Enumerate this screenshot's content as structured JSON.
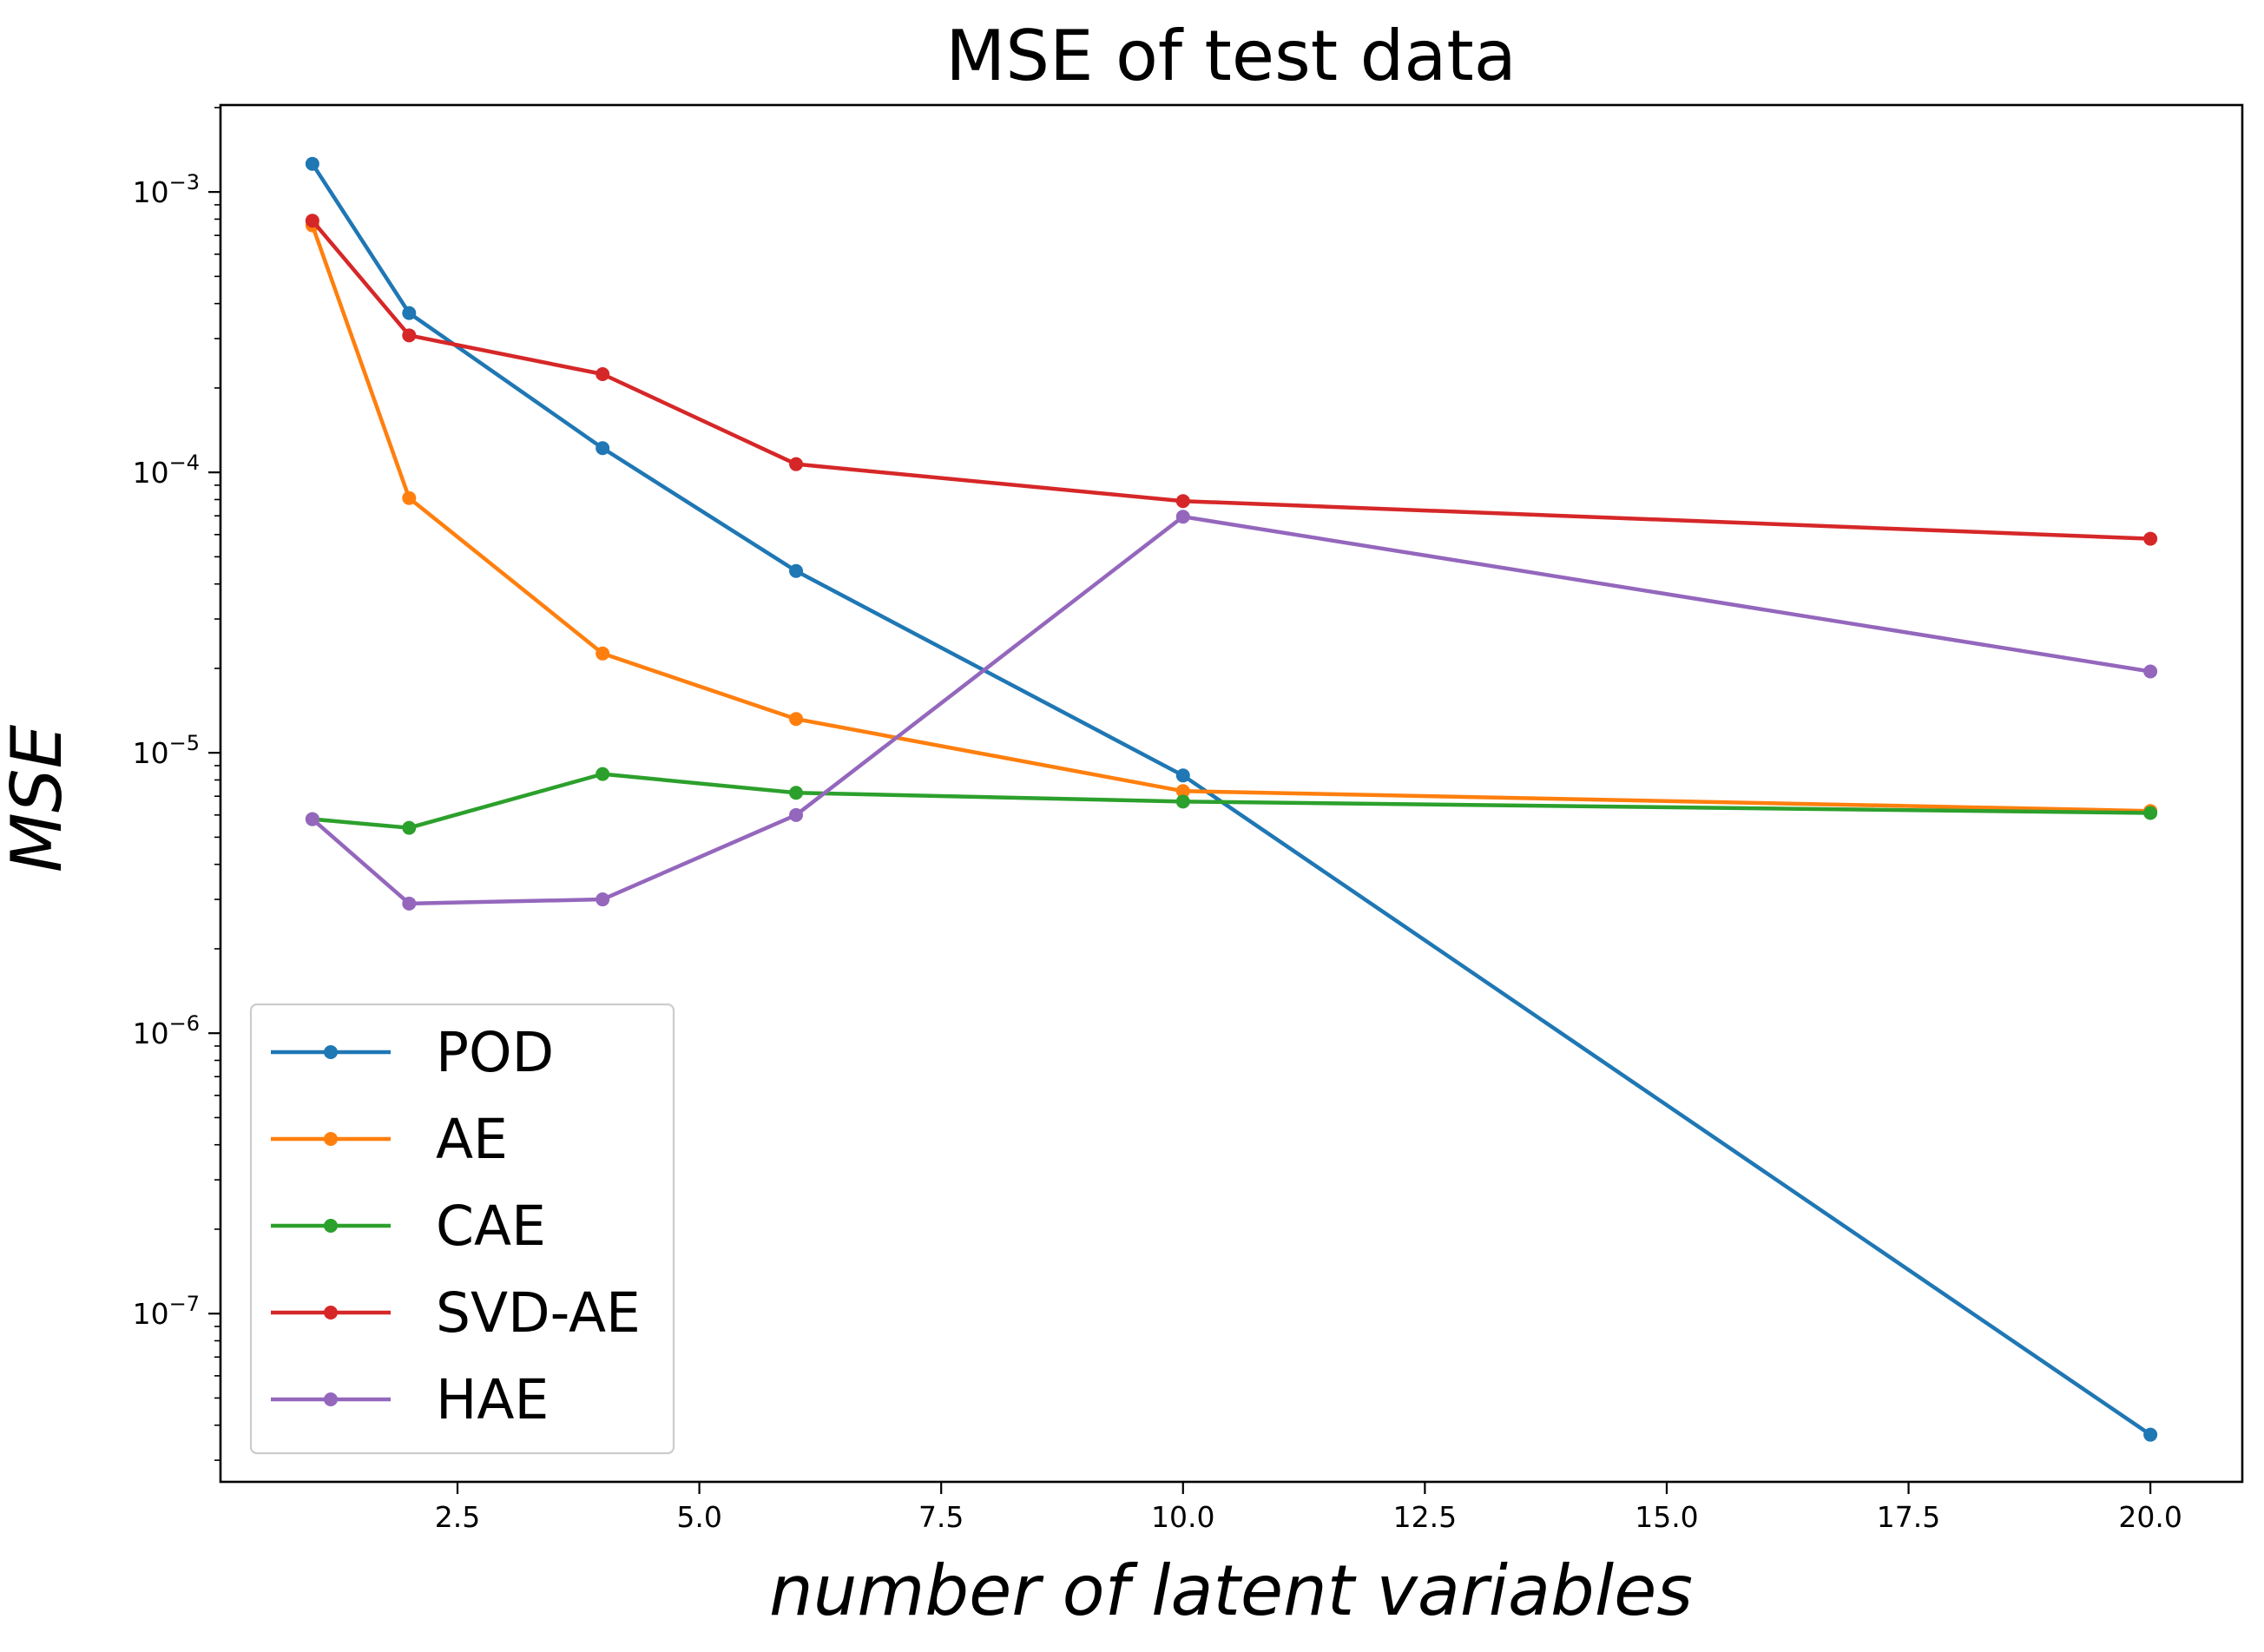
{
  "chart_data": {
    "type": "line",
    "title": "MSE of test data",
    "xlabel": "number of latent variables",
    "ylabel": "MSE",
    "yscale": "log",
    "xlim": [
      0.05,
      20.95
    ],
    "ylim_log10": [
      -7.6,
      -2.69
    ],
    "x_ticks": [
      2.5,
      5.0,
      7.5,
      10.0,
      12.5,
      15.0,
      17.5,
      20.0
    ],
    "x_tick_labels": [
      "2.5",
      "5.0",
      "7.5",
      "10.0",
      "12.5",
      "15.0",
      "17.5",
      "20.0"
    ],
    "y_ticks_log10": [
      -7,
      -6,
      -5,
      -4,
      -3
    ],
    "y_tick_labels": [
      {
        "base": "10",
        "exp": "−7"
      },
      {
        "base": "10",
        "exp": "−6"
      },
      {
        "base": "10",
        "exp": "−5"
      },
      {
        "base": "10",
        "exp": "−4"
      },
      {
        "base": "10",
        "exp": "−3"
      }
    ],
    "grid": false,
    "legend_position": "lower-left",
    "x": [
      1,
      2,
      4,
      6,
      10,
      20
    ],
    "series": [
      {
        "name": "POD",
        "color": "#1f77b4",
        "values": [
          0.00126,
          0.00037,
          0.000122,
          4.45e-05,
          8.3e-06,
          3.7e-08
        ]
      },
      {
        "name": "AE",
        "color": "#ff7f0e",
        "values": [
          0.00076,
          8.1e-05,
          2.26e-05,
          1.32e-05,
          7.3e-06,
          6.2e-06
        ]
      },
      {
        "name": "CAE",
        "color": "#2ca02c",
        "values": [
          5.8e-06,
          5.4e-06,
          8.4e-06,
          7.2e-06,
          6.7e-06,
          6.1e-06
        ]
      },
      {
        "name": "SVD-AE",
        "color": "#d62728",
        "values": [
          0.00079,
          0.000308,
          0.000224,
          0.000107,
          7.9e-05,
          5.8e-05
        ]
      },
      {
        "name": "HAE",
        "color": "#9467bd",
        "values": [
          5.8e-06,
          2.9e-06,
          3e-06,
          6e-06,
          6.95e-05,
          1.95e-05
        ]
      }
    ]
  }
}
